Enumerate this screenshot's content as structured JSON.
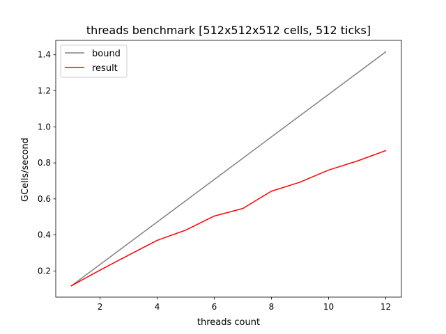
{
  "chart_data": {
    "type": "line",
    "title": "threads benchmark [512x512x512 cells, 512 ticks]",
    "xlabel": "threads count",
    "ylabel": "GCells/second",
    "xlim": [
      0.45,
      12.55
    ],
    "ylim": [
      0.055,
      1.48
    ],
    "xticks": [
      2,
      4,
      6,
      8,
      10,
      12
    ],
    "yticks": [
      0.2,
      0.4,
      0.6,
      0.8,
      1.0,
      1.2,
      1.4
    ],
    "ytick_labels": [
      "0.2",
      "0.4",
      "0.6",
      "0.8",
      "1.0",
      "1.2",
      "1.4"
    ],
    "grid": false,
    "legend_position": "top-left",
    "series": [
      {
        "name": "bound",
        "color": "#808080",
        "x": [
          1,
          12
        ],
        "y": [
          0.118,
          1.416
        ]
      },
      {
        "name": "result",
        "color": "#ff0000",
        "x": [
          1,
          2,
          3,
          4,
          5,
          6,
          7,
          8,
          9,
          10,
          11,
          12
        ],
        "y": [
          0.118,
          0.205,
          0.288,
          0.37,
          0.427,
          0.505,
          0.547,
          0.643,
          0.693,
          0.76,
          0.81,
          0.868
        ]
      }
    ]
  }
}
